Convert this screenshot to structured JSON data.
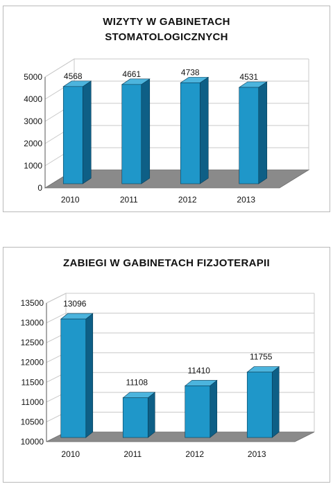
{
  "chart_data": [
    {
      "type": "bar",
      "title_lines": [
        "WIZYTY  W  GABINETACH",
        "STOMATOLOGICZNYCH"
      ],
      "categories": [
        "2010",
        "2011",
        "2012",
        "2013"
      ],
      "values": [
        4568,
        4661,
        4738,
        4531
      ],
      "ylim": [
        0,
        5000
      ],
      "yticks": [
        "0",
        "1000",
        "2000",
        "3000",
        "4000",
        "5000"
      ],
      "xlabel": "",
      "ylabel": "",
      "grid": true,
      "style": "3d",
      "colors": {
        "bar_front": "#1f97c9",
        "bar_side": "#0e5f86",
        "bar_top": "#4cb4dd",
        "floor": "#8a8a8a",
        "grid": "#c8c8c8"
      }
    },
    {
      "type": "bar",
      "title_lines": [
        "ZABIEGI W GABINETACH FIZJOTERAPII"
      ],
      "categories": [
        "2010",
        "2011",
        "2012",
        "2013"
      ],
      "values": [
        13096,
        11108,
        11410,
        11755
      ],
      "ylim": [
        10000,
        13500
      ],
      "yticks": [
        "10000",
        "10500",
        "11000",
        "11500",
        "12000",
        "12500",
        "13000",
        "13500"
      ],
      "xlabel": "",
      "ylabel": "",
      "grid": true,
      "style": "3d",
      "colors": {
        "bar_front": "#1f97c9",
        "bar_side": "#0e5f86",
        "bar_top": "#4cb4dd",
        "floor": "#8a8a8a",
        "grid": "#c8c8c8"
      }
    }
  ]
}
